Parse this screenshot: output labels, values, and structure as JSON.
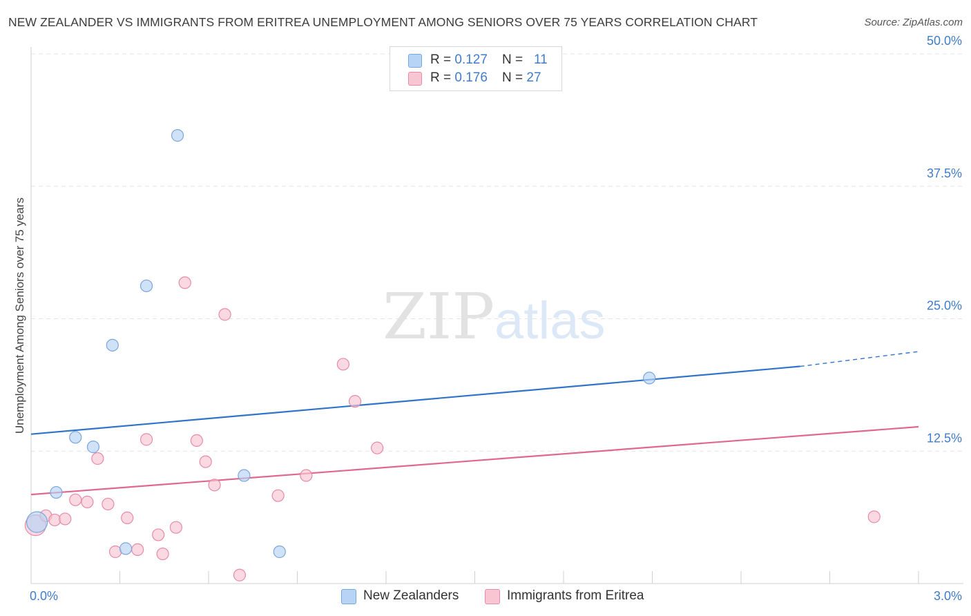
{
  "header": {
    "title": "NEW ZEALANDER VS IMMIGRANTS FROM ERITREA UNEMPLOYMENT AMONG SENIORS OVER 75 YEARS CORRELATION CHART",
    "source": "Source: ZipAtlas.com"
  },
  "legend": {
    "rows": [
      {
        "r_label": "R = ",
        "r_value": "0.127",
        "n_label": "N = ",
        "n_value": "11"
      },
      {
        "r_label": "R = ",
        "r_value": "0.176",
        "n_label": "N = ",
        "n_value": "27"
      }
    ]
  },
  "watermark": {
    "zip": "ZIP",
    "atlas": "atlas"
  },
  "colors": {
    "blue_fill": "#b7d3f5",
    "blue_stroke": "#7aa6dc",
    "blue_line": "#2f74c9",
    "pink_fill": "#f8c5d3",
    "pink_stroke": "#e88aa6",
    "pink_line": "#e0678e",
    "tick_text": "#3f7ccc",
    "grid": "#e3e3e3"
  },
  "chart_data": {
    "type": "scatter",
    "title": "NEW ZEALANDER VS IMMIGRANTS FROM ERITREA UNEMPLOYMENT AMONG SENIORS OVER 75 YEARS CORRELATION CHART",
    "xlabel": "",
    "ylabel": "Unemployment Among Seniors over 75 years",
    "xlim": [
      0,
      3.0
    ],
    "ylim": [
      0,
      50
    ],
    "x_ticks": [
      "0.0%",
      "3.0%"
    ],
    "y_ticks": [
      {
        "value": 12.5,
        "label": "12.5%"
      },
      {
        "value": 25.0,
        "label": "25.0%"
      },
      {
        "value": 37.5,
        "label": "37.5%"
      },
      {
        "value": 50.0,
        "label": "50.0%"
      }
    ],
    "series": [
      {
        "name": "New Zealanders",
        "color": "#b7d3f5",
        "r": "0.127",
        "n": "11",
        "trend": {
          "x0": 0.0,
          "y0": 14.1,
          "x1": 2.6,
          "y1": 20.5,
          "dashed_to_x": 3.0,
          "dashed_to_y": 21.9
        },
        "points": [
          {
            "x": 0.02,
            "y": 5.8,
            "big": true
          },
          {
            "x": 0.085,
            "y": 8.6
          },
          {
            "x": 0.15,
            "y": 13.8
          },
          {
            "x": 0.21,
            "y": 12.9
          },
          {
            "x": 0.275,
            "y": 22.5
          },
          {
            "x": 0.32,
            "y": 3.3
          },
          {
            "x": 0.39,
            "y": 28.1
          },
          {
            "x": 0.495,
            "y": 42.3
          },
          {
            "x": 0.72,
            "y": 10.2
          },
          {
            "x": 0.84,
            "y": 3.0
          },
          {
            "x": 2.09,
            "y": 19.4
          }
        ]
      },
      {
        "name": "Immigrants from Eritrea",
        "color": "#f8c5d3",
        "r": "0.176",
        "n": "27",
        "trend": {
          "x0": 0.0,
          "y0": 8.4,
          "x1": 3.0,
          "y1": 14.8
        },
        "points": [
          {
            "x": 0.015,
            "y": 5.5,
            "big": true
          },
          {
            "x": 0.05,
            "y": 6.4
          },
          {
            "x": 0.08,
            "y": 6.0
          },
          {
            "x": 0.115,
            "y": 6.1
          },
          {
            "x": 0.15,
            "y": 7.9
          },
          {
            "x": 0.19,
            "y": 7.7
          },
          {
            "x": 0.225,
            "y": 11.8
          },
          {
            "x": 0.26,
            "y": 7.5
          },
          {
            "x": 0.285,
            "y": 3.0
          },
          {
            "x": 0.325,
            "y": 6.2
          },
          {
            "x": 0.36,
            "y": 3.2
          },
          {
            "x": 0.39,
            "y": 13.6
          },
          {
            "x": 0.43,
            "y": 4.6
          },
          {
            "x": 0.445,
            "y": 2.8
          },
          {
            "x": 0.49,
            "y": 5.3
          },
          {
            "x": 0.52,
            "y": 28.4
          },
          {
            "x": 0.56,
            "y": 13.5
          },
          {
            "x": 0.59,
            "y": 11.5
          },
          {
            "x": 0.62,
            "y": 9.3
          },
          {
            "x": 0.655,
            "y": 25.4
          },
          {
            "x": 0.705,
            "y": 0.8
          },
          {
            "x": 0.835,
            "y": 8.3
          },
          {
            "x": 0.93,
            "y": 10.2
          },
          {
            "x": 1.055,
            "y": 20.7
          },
          {
            "x": 1.095,
            "y": 17.2
          },
          {
            "x": 1.17,
            "y": 12.8
          },
          {
            "x": 2.85,
            "y": 6.3
          }
        ]
      }
    ]
  },
  "bottom_legend": {
    "items": [
      {
        "label": "New Zealanders"
      },
      {
        "label": "Immigrants from Eritrea"
      }
    ]
  }
}
